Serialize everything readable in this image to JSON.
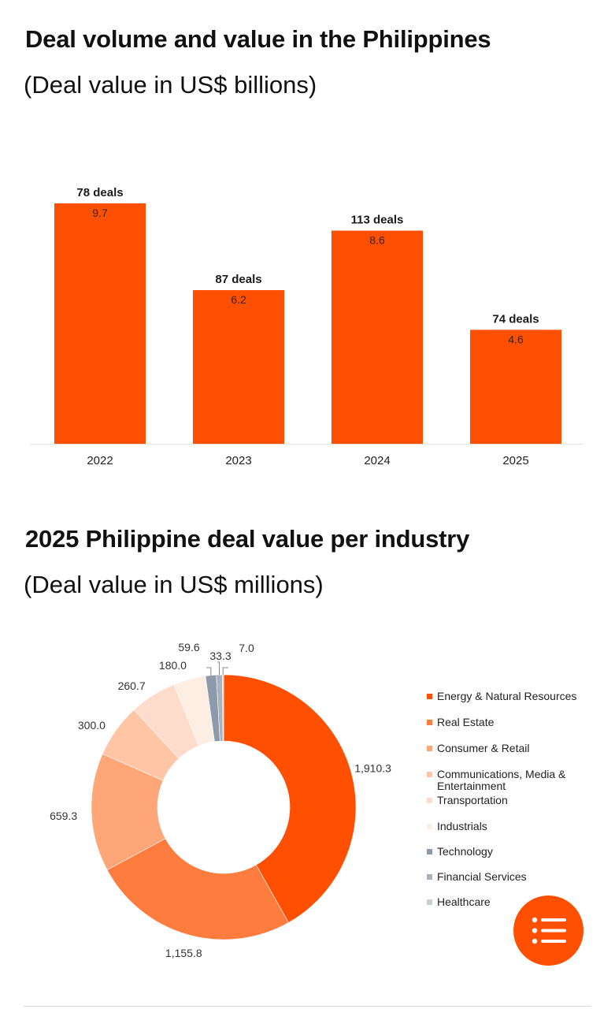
{
  "bar_section": {
    "title": "Deal volume and value in the Philippines",
    "subtitle": "(Deal value in US$ billions)"
  },
  "donut_section": {
    "title": "2025 Philippine deal value per industry",
    "subtitle": "(Deal value in US$ millions)"
  },
  "chart_data": [
    {
      "type": "bar",
      "categories": [
        "2022",
        "2023",
        "2024",
        "2025"
      ],
      "values": [
        9.7,
        6.2,
        8.6,
        4.6
      ],
      "value_labels": [
        "9.7",
        "6.2",
        "8.6",
        "4.6"
      ],
      "deal_labels": [
        "78 deals",
        "87 deals",
        "113 deals",
        "74 deals"
      ],
      "ylim": [
        0,
        10
      ],
      "grid": false,
      "color": "#fe5000"
    },
    {
      "type": "pie",
      "variant": "donut",
      "labels": [
        "Energy & Natural Resources",
        "Real Estate",
        "Consumer & Retail",
        "Communications, Media & Entertainment",
        "Transportation",
        "Industrials",
        "Technology",
        "Financial Services",
        "Healthcare"
      ],
      "values": [
        1910.3,
        1155.8,
        659.3,
        300.0,
        260.7,
        180.0,
        59.6,
        33.3,
        7.0
      ],
      "value_labels": [
        "1,910.3",
        "1,155.8",
        "659.3",
        "300.0",
        "260.7",
        "180.0",
        "59.6",
        "33.3",
        "7.0"
      ],
      "colors": [
        "#fe5000",
        "#fe7c3e",
        "#fea677",
        "#fec6a4",
        "#fedccb",
        "#fdeee4",
        "#8c9aab",
        "#a9b3bf",
        "#c6cdd5"
      ],
      "legend_position": "right"
    }
  ]
}
